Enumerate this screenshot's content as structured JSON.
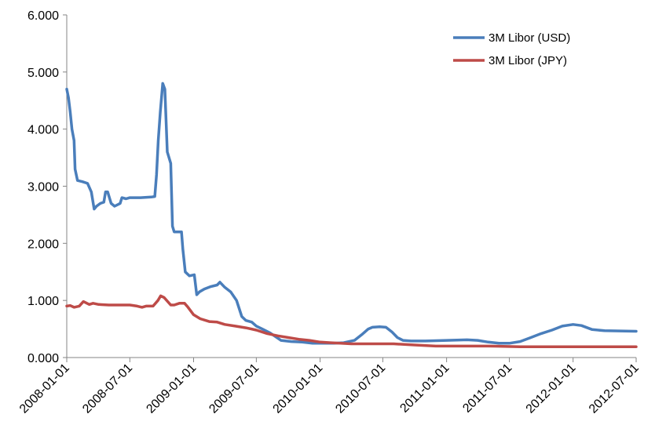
{
  "chart_data": {
    "type": "line",
    "title": "",
    "xlabel": "",
    "ylabel": "",
    "ylim": [
      0,
      6
    ],
    "y_ticks": [
      "0.000",
      "1.000",
      "2.000",
      "3.000",
      "4.000",
      "5.000",
      "6.000"
    ],
    "x_ticks": [
      "2008-01-01",
      "2008-07-01",
      "2009-01-01",
      "2009-07-01",
      "2010-01-01",
      "2010-07-01",
      "2011-01-01",
      "2011-07-01",
      "2012-01-01",
      "2012-07-01"
    ],
    "xlim": [
      "2008-01-01",
      "2012-07-01"
    ],
    "grid": false,
    "legend_position": "top-right",
    "series": [
      {
        "name": "3M Libor (USD)",
        "color": "#4a7ebb",
        "points": [
          [
            "2008-01-01",
            4.7
          ],
          [
            "2008-01-06",
            4.55
          ],
          [
            "2008-01-11",
            4.3
          ],
          [
            "2008-01-16",
            4.0
          ],
          [
            "2008-01-22",
            3.8
          ],
          [
            "2008-01-25",
            3.3
          ],
          [
            "2008-02-01",
            3.1
          ],
          [
            "2008-02-15",
            3.08
          ],
          [
            "2008-03-01",
            3.05
          ],
          [
            "2008-03-12",
            2.9
          ],
          [
            "2008-03-20",
            2.6
          ],
          [
            "2008-03-27",
            2.65
          ],
          [
            "2008-04-07",
            2.7
          ],
          [
            "2008-04-17",
            2.72
          ],
          [
            "2008-04-22",
            2.9
          ],
          [
            "2008-04-28",
            2.9
          ],
          [
            "2008-05-08",
            2.7
          ],
          [
            "2008-05-18",
            2.65
          ],
          [
            "2008-06-03",
            2.7
          ],
          [
            "2008-06-08",
            2.8
          ],
          [
            "2008-06-20",
            2.78
          ],
          [
            "2008-07-01",
            2.8
          ],
          [
            "2008-08-01",
            2.8
          ],
          [
            "2008-09-01",
            2.81
          ],
          [
            "2008-09-11",
            2.82
          ],
          [
            "2008-09-16",
            3.2
          ],
          [
            "2008-09-21",
            3.8
          ],
          [
            "2008-09-27",
            4.3
          ],
          [
            "2008-10-04",
            4.8
          ],
          [
            "2008-10-10",
            4.7
          ],
          [
            "2008-10-17",
            3.6
          ],
          [
            "2008-10-27",
            3.4
          ],
          [
            "2008-11-01",
            2.3
          ],
          [
            "2008-11-06",
            2.2
          ],
          [
            "2008-11-17",
            2.2
          ],
          [
            "2008-11-27",
            2.2
          ],
          [
            "2008-12-01",
            1.9
          ],
          [
            "2008-12-08",
            1.5
          ],
          [
            "2008-12-20",
            1.43
          ],
          [
            "2009-01-03",
            1.45
          ],
          [
            "2009-01-10",
            1.1
          ],
          [
            "2009-01-18",
            1.15
          ],
          [
            "2009-02-01",
            1.2
          ],
          [
            "2009-02-18",
            1.24
          ],
          [
            "2009-03-10",
            1.27
          ],
          [
            "2009-03-18",
            1.32
          ],
          [
            "2009-04-01",
            1.23
          ],
          [
            "2009-04-18",
            1.15
          ],
          [
            "2009-05-05",
            1.0
          ],
          [
            "2009-05-20",
            0.72
          ],
          [
            "2009-06-01",
            0.65
          ],
          [
            "2009-06-18",
            0.62
          ],
          [
            "2009-07-01",
            0.55
          ],
          [
            "2009-07-18",
            0.5
          ],
          [
            "2009-08-10",
            0.43
          ],
          [
            "2009-09-10",
            0.3
          ],
          [
            "2009-10-10",
            0.28
          ],
          [
            "2009-11-10",
            0.27
          ],
          [
            "2009-12-10",
            0.25
          ],
          [
            "2010-01-10",
            0.25
          ],
          [
            "2010-02-10",
            0.25
          ],
          [
            "2010-03-10",
            0.26
          ],
          [
            "2010-04-10",
            0.3
          ],
          [
            "2010-05-01",
            0.4
          ],
          [
            "2010-05-20",
            0.5
          ],
          [
            "2010-06-01",
            0.53
          ],
          [
            "2010-06-22",
            0.54
          ],
          [
            "2010-07-10",
            0.53
          ],
          [
            "2010-07-27",
            0.45
          ],
          [
            "2010-08-12",
            0.35
          ],
          [
            "2010-08-28",
            0.3
          ],
          [
            "2010-09-20",
            0.29
          ],
          [
            "2010-11-01",
            0.29
          ],
          [
            "2011-01-01",
            0.3
          ],
          [
            "2011-03-01",
            0.31
          ],
          [
            "2011-04-01",
            0.3
          ],
          [
            "2011-05-01",
            0.27
          ],
          [
            "2011-06-01",
            0.25
          ],
          [
            "2011-07-01",
            0.25
          ],
          [
            "2011-08-01",
            0.28
          ],
          [
            "2011-09-01",
            0.35
          ],
          [
            "2011-10-01",
            0.42
          ],
          [
            "2011-11-01",
            0.48
          ],
          [
            "2011-12-01",
            0.55
          ],
          [
            "2012-01-01",
            0.58
          ],
          [
            "2012-01-25",
            0.56
          ],
          [
            "2012-02-25",
            0.49
          ],
          [
            "2012-04-01",
            0.47
          ],
          [
            "2012-07-01",
            0.46
          ]
        ]
      },
      {
        "name": "3M Libor (JPY)",
        "color": "#be4b48",
        "points": [
          [
            "2008-01-01",
            0.9
          ],
          [
            "2008-01-11",
            0.91
          ],
          [
            "2008-01-22",
            0.88
          ],
          [
            "2008-02-06",
            0.9
          ],
          [
            "2008-02-18",
            0.98
          ],
          [
            "2008-03-06",
            0.93
          ],
          [
            "2008-03-17",
            0.95
          ],
          [
            "2008-04-02",
            0.93
          ],
          [
            "2008-05-01",
            0.92
          ],
          [
            "2008-06-10",
            0.92
          ],
          [
            "2008-07-01",
            0.92
          ],
          [
            "2008-07-22",
            0.9
          ],
          [
            "2008-08-05",
            0.88
          ],
          [
            "2008-08-17",
            0.9
          ],
          [
            "2008-09-06",
            0.9
          ],
          [
            "2008-09-20",
            1.0
          ],
          [
            "2008-09-28",
            1.08
          ],
          [
            "2008-10-08",
            1.05
          ],
          [
            "2008-10-27",
            0.92
          ],
          [
            "2008-11-06",
            0.92
          ],
          [
            "2008-11-21",
            0.95
          ],
          [
            "2008-12-06",
            0.95
          ],
          [
            "2008-12-16",
            0.88
          ],
          [
            "2009-01-01",
            0.75
          ],
          [
            "2009-01-20",
            0.68
          ],
          [
            "2009-02-15",
            0.63
          ],
          [
            "2009-03-10",
            0.62
          ],
          [
            "2009-04-01",
            0.58
          ],
          [
            "2009-05-01",
            0.55
          ],
          [
            "2009-06-01",
            0.52
          ],
          [
            "2009-07-01",
            0.48
          ],
          [
            "2009-08-01",
            0.42
          ],
          [
            "2009-09-01",
            0.38
          ],
          [
            "2009-10-01",
            0.35
          ],
          [
            "2009-11-01",
            0.32
          ],
          [
            "2009-12-01",
            0.3
          ],
          [
            "2010-01-01",
            0.27
          ],
          [
            "2010-02-01",
            0.26
          ],
          [
            "2010-03-01",
            0.25
          ],
          [
            "2010-04-01",
            0.24
          ],
          [
            "2010-06-01",
            0.24
          ],
          [
            "2010-08-01",
            0.24
          ],
          [
            "2010-10-01",
            0.22
          ],
          [
            "2010-12-01",
            0.2
          ],
          [
            "2011-02-01",
            0.2
          ],
          [
            "2011-05-01",
            0.2
          ],
          [
            "2011-08-01",
            0.19
          ],
          [
            "2012-01-01",
            0.19
          ],
          [
            "2012-07-01",
            0.19
          ]
        ]
      }
    ]
  }
}
